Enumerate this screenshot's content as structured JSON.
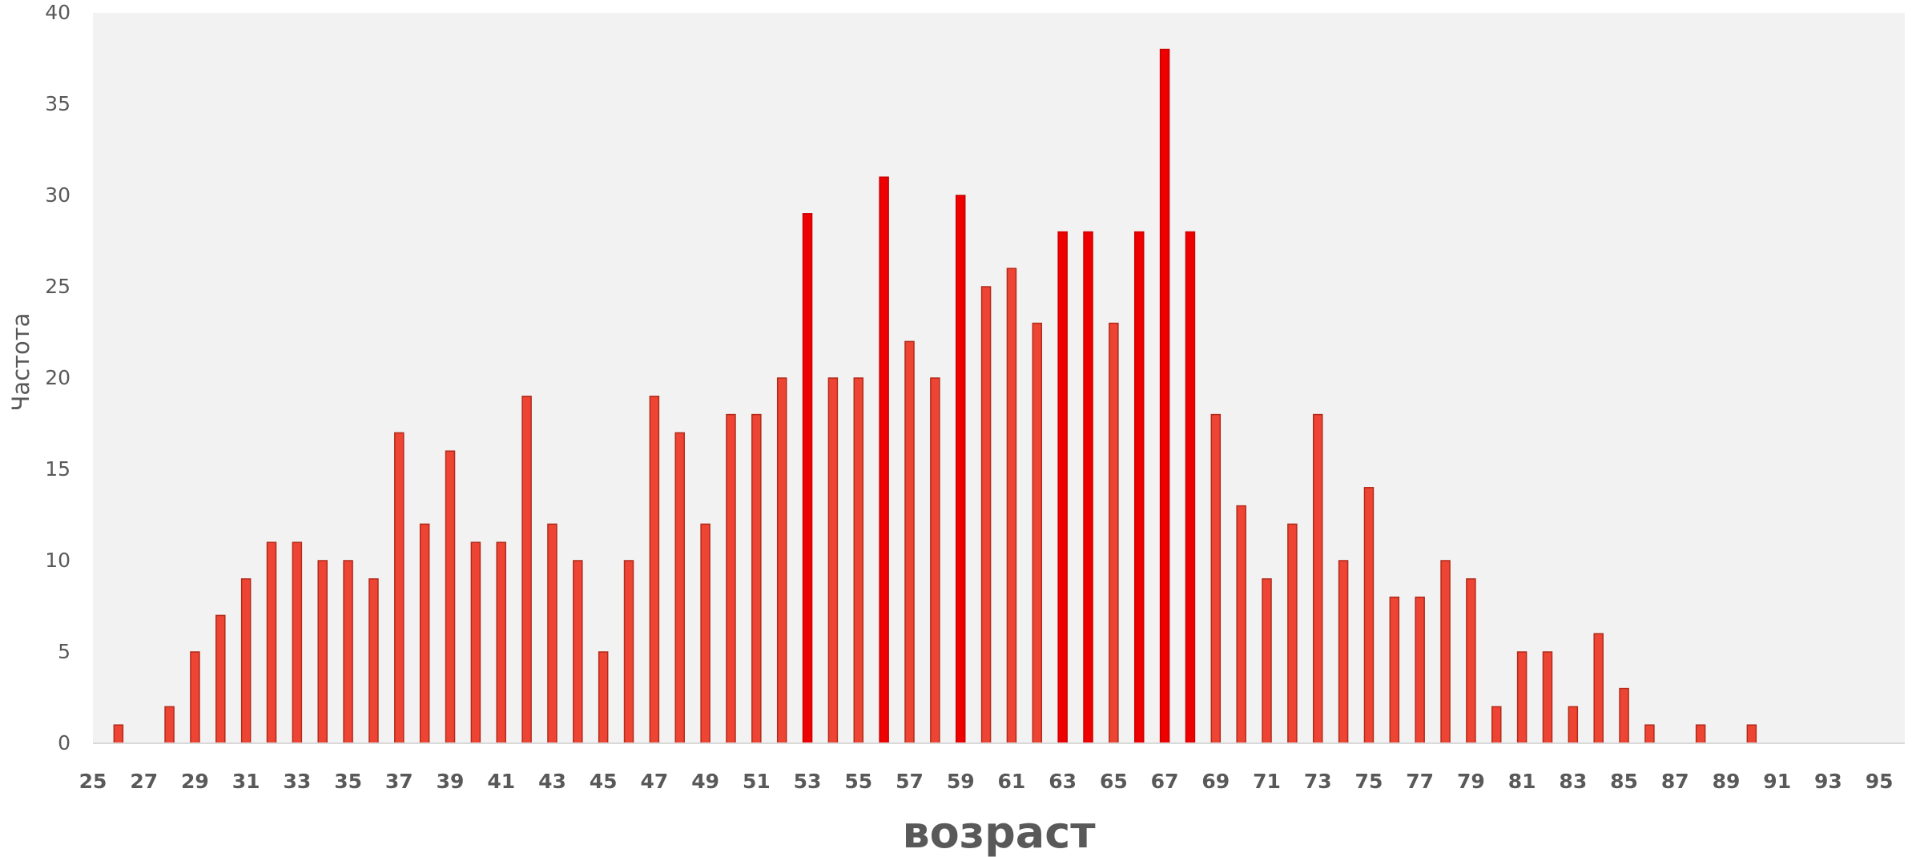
{
  "chart_data": {
    "type": "bar",
    "title": "",
    "xlabel": "возраст",
    "ylabel": "Частота",
    "ylim": [
      0,
      40
    ],
    "yticks": [
      0,
      5,
      10,
      15,
      20,
      25,
      30,
      35,
      40
    ],
    "xlim": [
      25,
      96
    ],
    "xtick_labels": [
      "25",
      "27",
      "29",
      "31",
      "33",
      "35",
      "37",
      "39",
      "41",
      "43",
      "45",
      "47",
      "49",
      "51",
      "53",
      "55",
      "57",
      "59",
      "61",
      "63",
      "65",
      "67",
      "69",
      "71",
      "73",
      "75",
      "77",
      "79",
      "81",
      "83",
      "85",
      "87",
      "89",
      "91",
      "93",
      "95"
    ],
    "grid": false,
    "legend": "none",
    "colors": {
      "plot_background": "#f2f2f2",
      "bar_fill": "#ee4433",
      "bar_stroke": "#b22a1a",
      "bar_fill_highlight": "#ee0000",
      "bar_stroke_highlight": "#cc0000",
      "axis_text": "#595959",
      "axis_line": "#d9d9d9"
    },
    "highlight_threshold": 28,
    "categories": [
      26,
      28,
      29,
      30,
      31,
      32,
      33,
      34,
      35,
      36,
      37,
      38,
      39,
      40,
      41,
      42,
      43,
      44,
      45,
      46,
      47,
      48,
      49,
      50,
      51,
      52,
      53,
      54,
      55,
      56,
      57,
      58,
      59,
      60,
      61,
      62,
      63,
      64,
      65,
      66,
      67,
      68,
      69,
      70,
      71,
      72,
      73,
      74,
      75,
      76,
      77,
      78,
      79,
      80,
      81,
      82,
      83,
      84,
      85,
      86,
      88,
      90
    ],
    "values": [
      1,
      2,
      5,
      7,
      9,
      11,
      11,
      10,
      10,
      9,
      17,
      12,
      16,
      11,
      11,
      19,
      12,
      10,
      5,
      10,
      19,
      17,
      12,
      18,
      18,
      20,
      29,
      20,
      20,
      31,
      22,
      20,
      30,
      25,
      26,
      23,
      28,
      28,
      23,
      28,
      38,
      28,
      18,
      13,
      9,
      12,
      18,
      10,
      14,
      8,
      8,
      10,
      9,
      2,
      5,
      5,
      2,
      6,
      3,
      1,
      1,
      1
    ]
  }
}
